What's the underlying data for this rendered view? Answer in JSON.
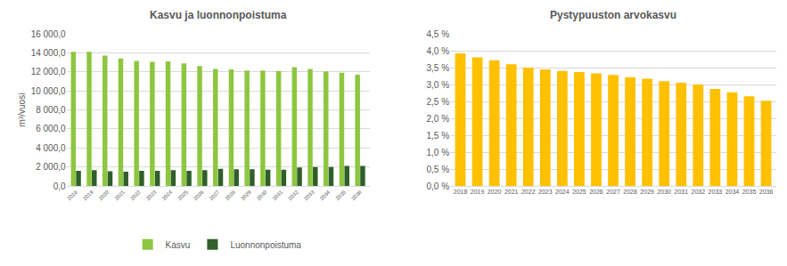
{
  "chart_data": [
    {
      "type": "bar",
      "title": "Kasvu ja luonnonpoistuma",
      "y_label": "m³/vuosi",
      "categories": [
        "2018",
        "2019",
        "2020",
        "2021",
        "2022",
        "2023",
        "2024",
        "2025",
        "2026",
        "2027",
        "2028",
        "2029",
        "2030",
        "2031",
        "2032",
        "2033",
        "2034",
        "2035",
        "2036"
      ],
      "series": [
        {
          "name": "Kasvu",
          "color": "#8dc63f",
          "values": [
            14100,
            14100,
            13700,
            13400,
            13150,
            13050,
            13100,
            12900,
            12600,
            12300,
            12250,
            12150,
            12150,
            12100,
            12500,
            12300,
            12050,
            11900,
            11700
          ]
        },
        {
          "name": "Luonnonpoistuma",
          "color": "#2f5f2a",
          "values": [
            1600,
            1650,
            1550,
            1500,
            1600,
            1600,
            1650,
            1600,
            1650,
            1800,
            1750,
            1750,
            1700,
            1700,
            1950,
            2000,
            2000,
            2100,
            2100
          ]
        }
      ],
      "ylim": [
        0,
        16000
      ],
      "yticks": [
        {
          "value": 0,
          "label": "0,0"
        },
        {
          "value": 2000,
          "label": "2 000,0"
        },
        {
          "value": 4000,
          "label": "4 000,0"
        },
        {
          "value": 6000,
          "label": "6 000,0"
        },
        {
          "value": 8000,
          "label": "8 000,0"
        },
        {
          "value": 10000,
          "label": "10 000,0"
        },
        {
          "value": 12000,
          "label": "12 000,0"
        },
        {
          "value": 14000,
          "label": "14 000,0"
        },
        {
          "value": 16000,
          "label": "16 000,0"
        }
      ],
      "grid": true,
      "legend": "bottom"
    },
    {
      "type": "bar",
      "title": "Pystypuuston arvokasvu",
      "categories": [
        "2018",
        "2019",
        "2020",
        "2021",
        "2022",
        "2023",
        "2024",
        "2025",
        "2026",
        "2027",
        "2028",
        "2029",
        "2030",
        "2031",
        "2032",
        "2033",
        "2034",
        "2035",
        "2036"
      ],
      "values": [
        3.92,
        3.8,
        3.72,
        3.6,
        3.5,
        3.45,
        3.4,
        3.37,
        3.33,
        3.28,
        3.22,
        3.17,
        3.1,
        3.05,
        3.0,
        2.87,
        2.77,
        2.65,
        2.52
      ],
      "color": "#ffc000",
      "ylim": [
        0,
        4.5
      ],
      "yticks": [
        {
          "value": 0,
          "label": "0,0 %"
        },
        {
          "value": 0.5,
          "label": "0,5 %"
        },
        {
          "value": 1,
          "label": "1,0 %"
        },
        {
          "value": 1.5,
          "label": "1,5 %"
        },
        {
          "value": 2,
          "label": "2,0 %"
        },
        {
          "value": 2.5,
          "label": "2,5 %"
        },
        {
          "value": 3,
          "label": "3,0 %"
        },
        {
          "value": 3.5,
          "label": "3,5 %"
        },
        {
          "value": 4,
          "label": "4,0 %"
        },
        {
          "value": 4.5,
          "label": "4,5 %"
        }
      ],
      "grid": true
    }
  ]
}
